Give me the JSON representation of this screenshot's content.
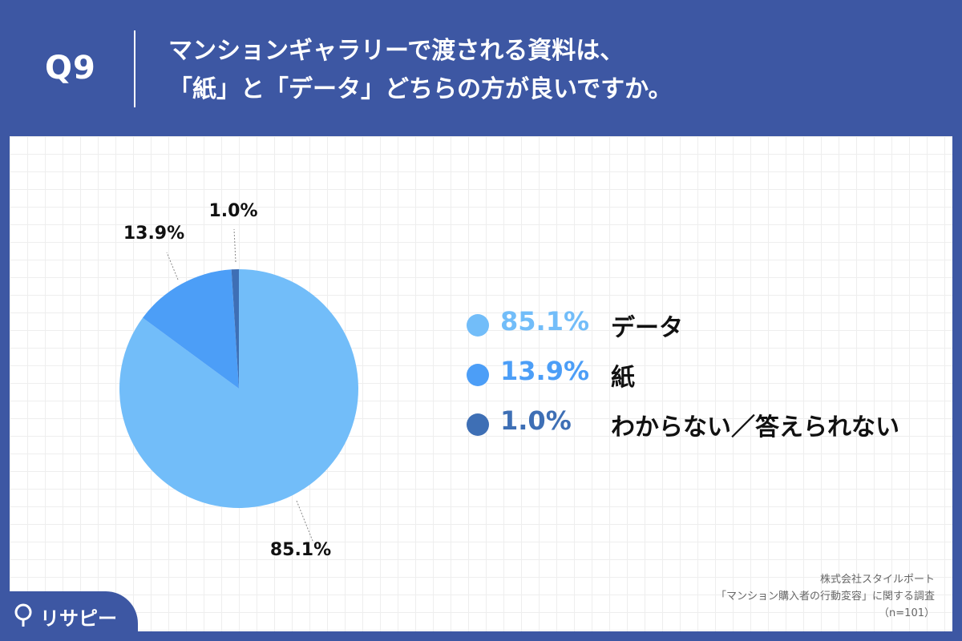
{
  "header": {
    "question_number": "Q9",
    "title_line1": "マンションギャラリーで渡される資料は、",
    "title_line2": "「紙」と「データ」どちらの方が良いですか。"
  },
  "chart_data": {
    "type": "pie",
    "title": "マンションギャラリーで渡される資料は、「紙」と「データ」どちらの方が良いですか。",
    "slices": [
      {
        "label": "データ",
        "value": 85.1,
        "display": "85.1%",
        "color": "#72bdf9"
      },
      {
        "label": "紙",
        "value": 13.9,
        "display": "13.9%",
        "color": "#4c9ef7"
      },
      {
        "label": "わからない／答えられない",
        "value": 1.0,
        "display": "1.0%",
        "color": "#3e6fb5"
      }
    ],
    "legend_position": "right"
  },
  "legend": [
    {
      "pct": "85.1%",
      "name": "データ",
      "color": "#72bdf9"
    },
    {
      "pct": "13.9%",
      "name": "紙",
      "color": "#4c9ef7"
    },
    {
      "pct": "1.0%",
      "name": "わからない／答えられない",
      "color": "#3e6fb5"
    }
  ],
  "source": {
    "company": "株式会社スタイルポート",
    "survey": "「マンション購入者の行動変容」に関する調査",
    "sample": "（n=101）"
  },
  "logo": {
    "text": "リサピー",
    "icon": "pin-icon"
  },
  "colors": {
    "header_bg": "#3d57a3",
    "panel_bg": "#ffffff",
    "grid": "#eeeeee"
  }
}
